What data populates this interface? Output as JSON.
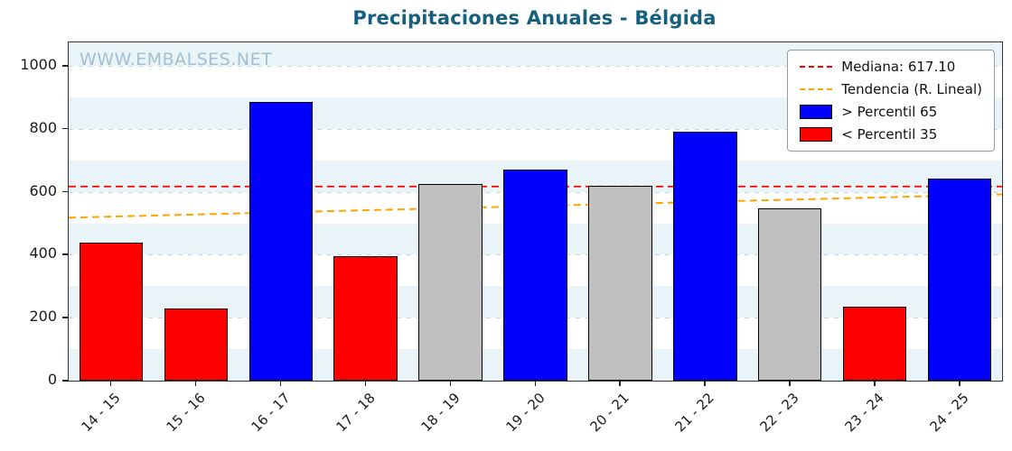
{
  "title": "Precipitaciones Anuales - Bélgida",
  "watermark": "WWW.EMBALSES.NET",
  "legend": {
    "median_label": "Mediana: 617.10",
    "trend_label": "Tendencia (R. Lineal)",
    "above_label": "> Percentil 65",
    "below_label": "< Percentil 35"
  },
  "colors": {
    "above": "#0000ff",
    "below": "#ff0000",
    "mid": "#c0c0c0",
    "median_line": "#ff0000",
    "trend_line": "#ffa500",
    "title": "#17607d",
    "watermark": "#a3bfd2",
    "stripe": "#e9f4f8"
  },
  "chart_data": {
    "type": "bar",
    "title": "Precipitaciones Anuales - Bélgida",
    "categories": [
      "14 - 15",
      "15 - 16",
      "16 - 17",
      "17 - 18",
      "18 - 19",
      "19 - 20",
      "20 - 21",
      "21 - 22",
      "22 - 23",
      "23 - 24",
      "24 - 25"
    ],
    "values": [
      440,
      229,
      886,
      396,
      626,
      671,
      620,
      790,
      548,
      235,
      641
    ],
    "classes": [
      "below",
      "below",
      "above",
      "below",
      "mid",
      "above",
      "mid",
      "above",
      "mid",
      "below",
      "above"
    ],
    "median": 617.1,
    "trend": {
      "start": 518,
      "end": 592
    },
    "ylim": [
      0,
      1075
    ],
    "yticks": [
      0,
      200,
      400,
      600,
      800,
      1000
    ],
    "xlabel": "",
    "ylabel": "",
    "grid": true,
    "legend_position": "upper right"
  }
}
